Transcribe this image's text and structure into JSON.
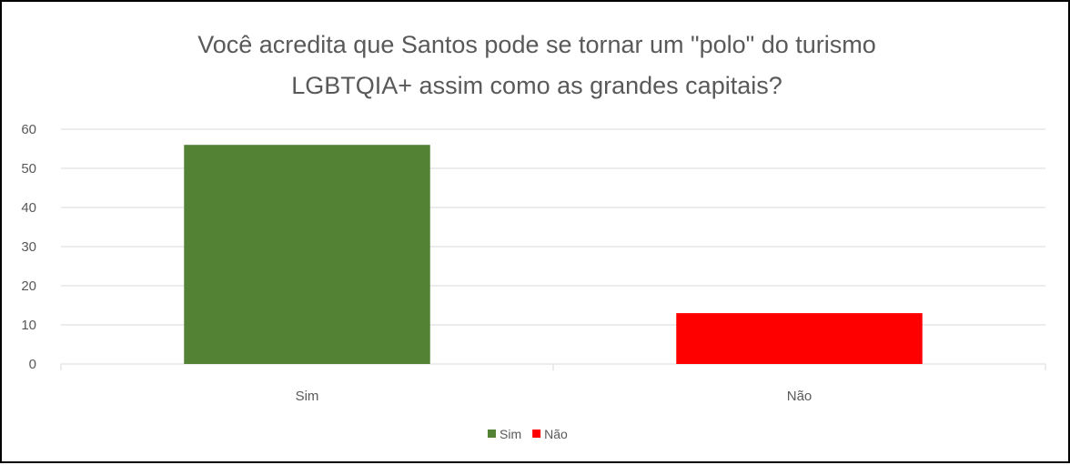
{
  "chart_data": {
    "type": "bar",
    "title_lines": [
      "Você acredita que Santos pode se tornar um \"polo\" do turismo",
      "LGBTQIA+ assim como as grandes capitais?"
    ],
    "categories": [
      "Sim",
      "Não"
    ],
    "values": [
      56,
      13
    ],
    "colors": [
      "#548235",
      "#ff0000"
    ],
    "ylim": [
      0,
      60
    ],
    "yticks": [
      0,
      10,
      20,
      30,
      40,
      50,
      60
    ],
    "grid": true,
    "legend": {
      "placement": "bottom",
      "entries": [
        {
          "label": "Sim",
          "color": "#548235"
        },
        {
          "label": "Não",
          "color": "#ff0000"
        }
      ]
    }
  }
}
